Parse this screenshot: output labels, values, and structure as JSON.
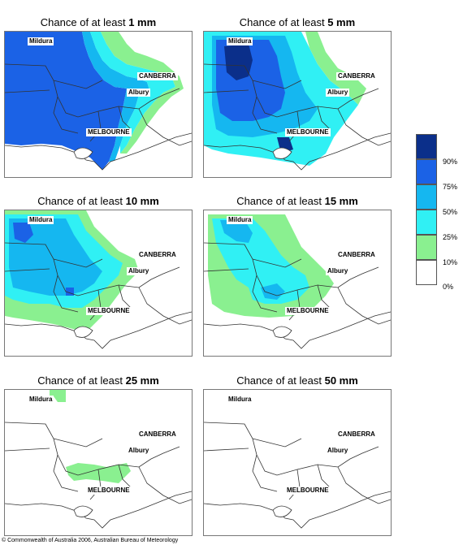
{
  "title_prefix": "Chance of at least",
  "panels": [
    {
      "threshold": "1 mm"
    },
    {
      "threshold": "5 mm"
    },
    {
      "threshold": "10 mm"
    },
    {
      "threshold": "15 mm"
    },
    {
      "threshold": "25 mm"
    },
    {
      "threshold": "50 mm"
    }
  ],
  "places": {
    "mildura": "Mildura",
    "canberra": "CANBERRA",
    "albury": "Albury",
    "melbourne": "MELBOURNE"
  },
  "legend": {
    "labels": [
      "90%",
      "75%",
      "50%",
      "25%",
      "10%",
      "0%"
    ],
    "colors": [
      "#0b2f8a",
      "#1b62e6",
      "#15b7f0",
      "#30f0f4",
      "#8af090",
      "#ffffff"
    ]
  },
  "copyright": "© Commonwealth of Australia 2006, Australian Bureau of Meteorology"
}
